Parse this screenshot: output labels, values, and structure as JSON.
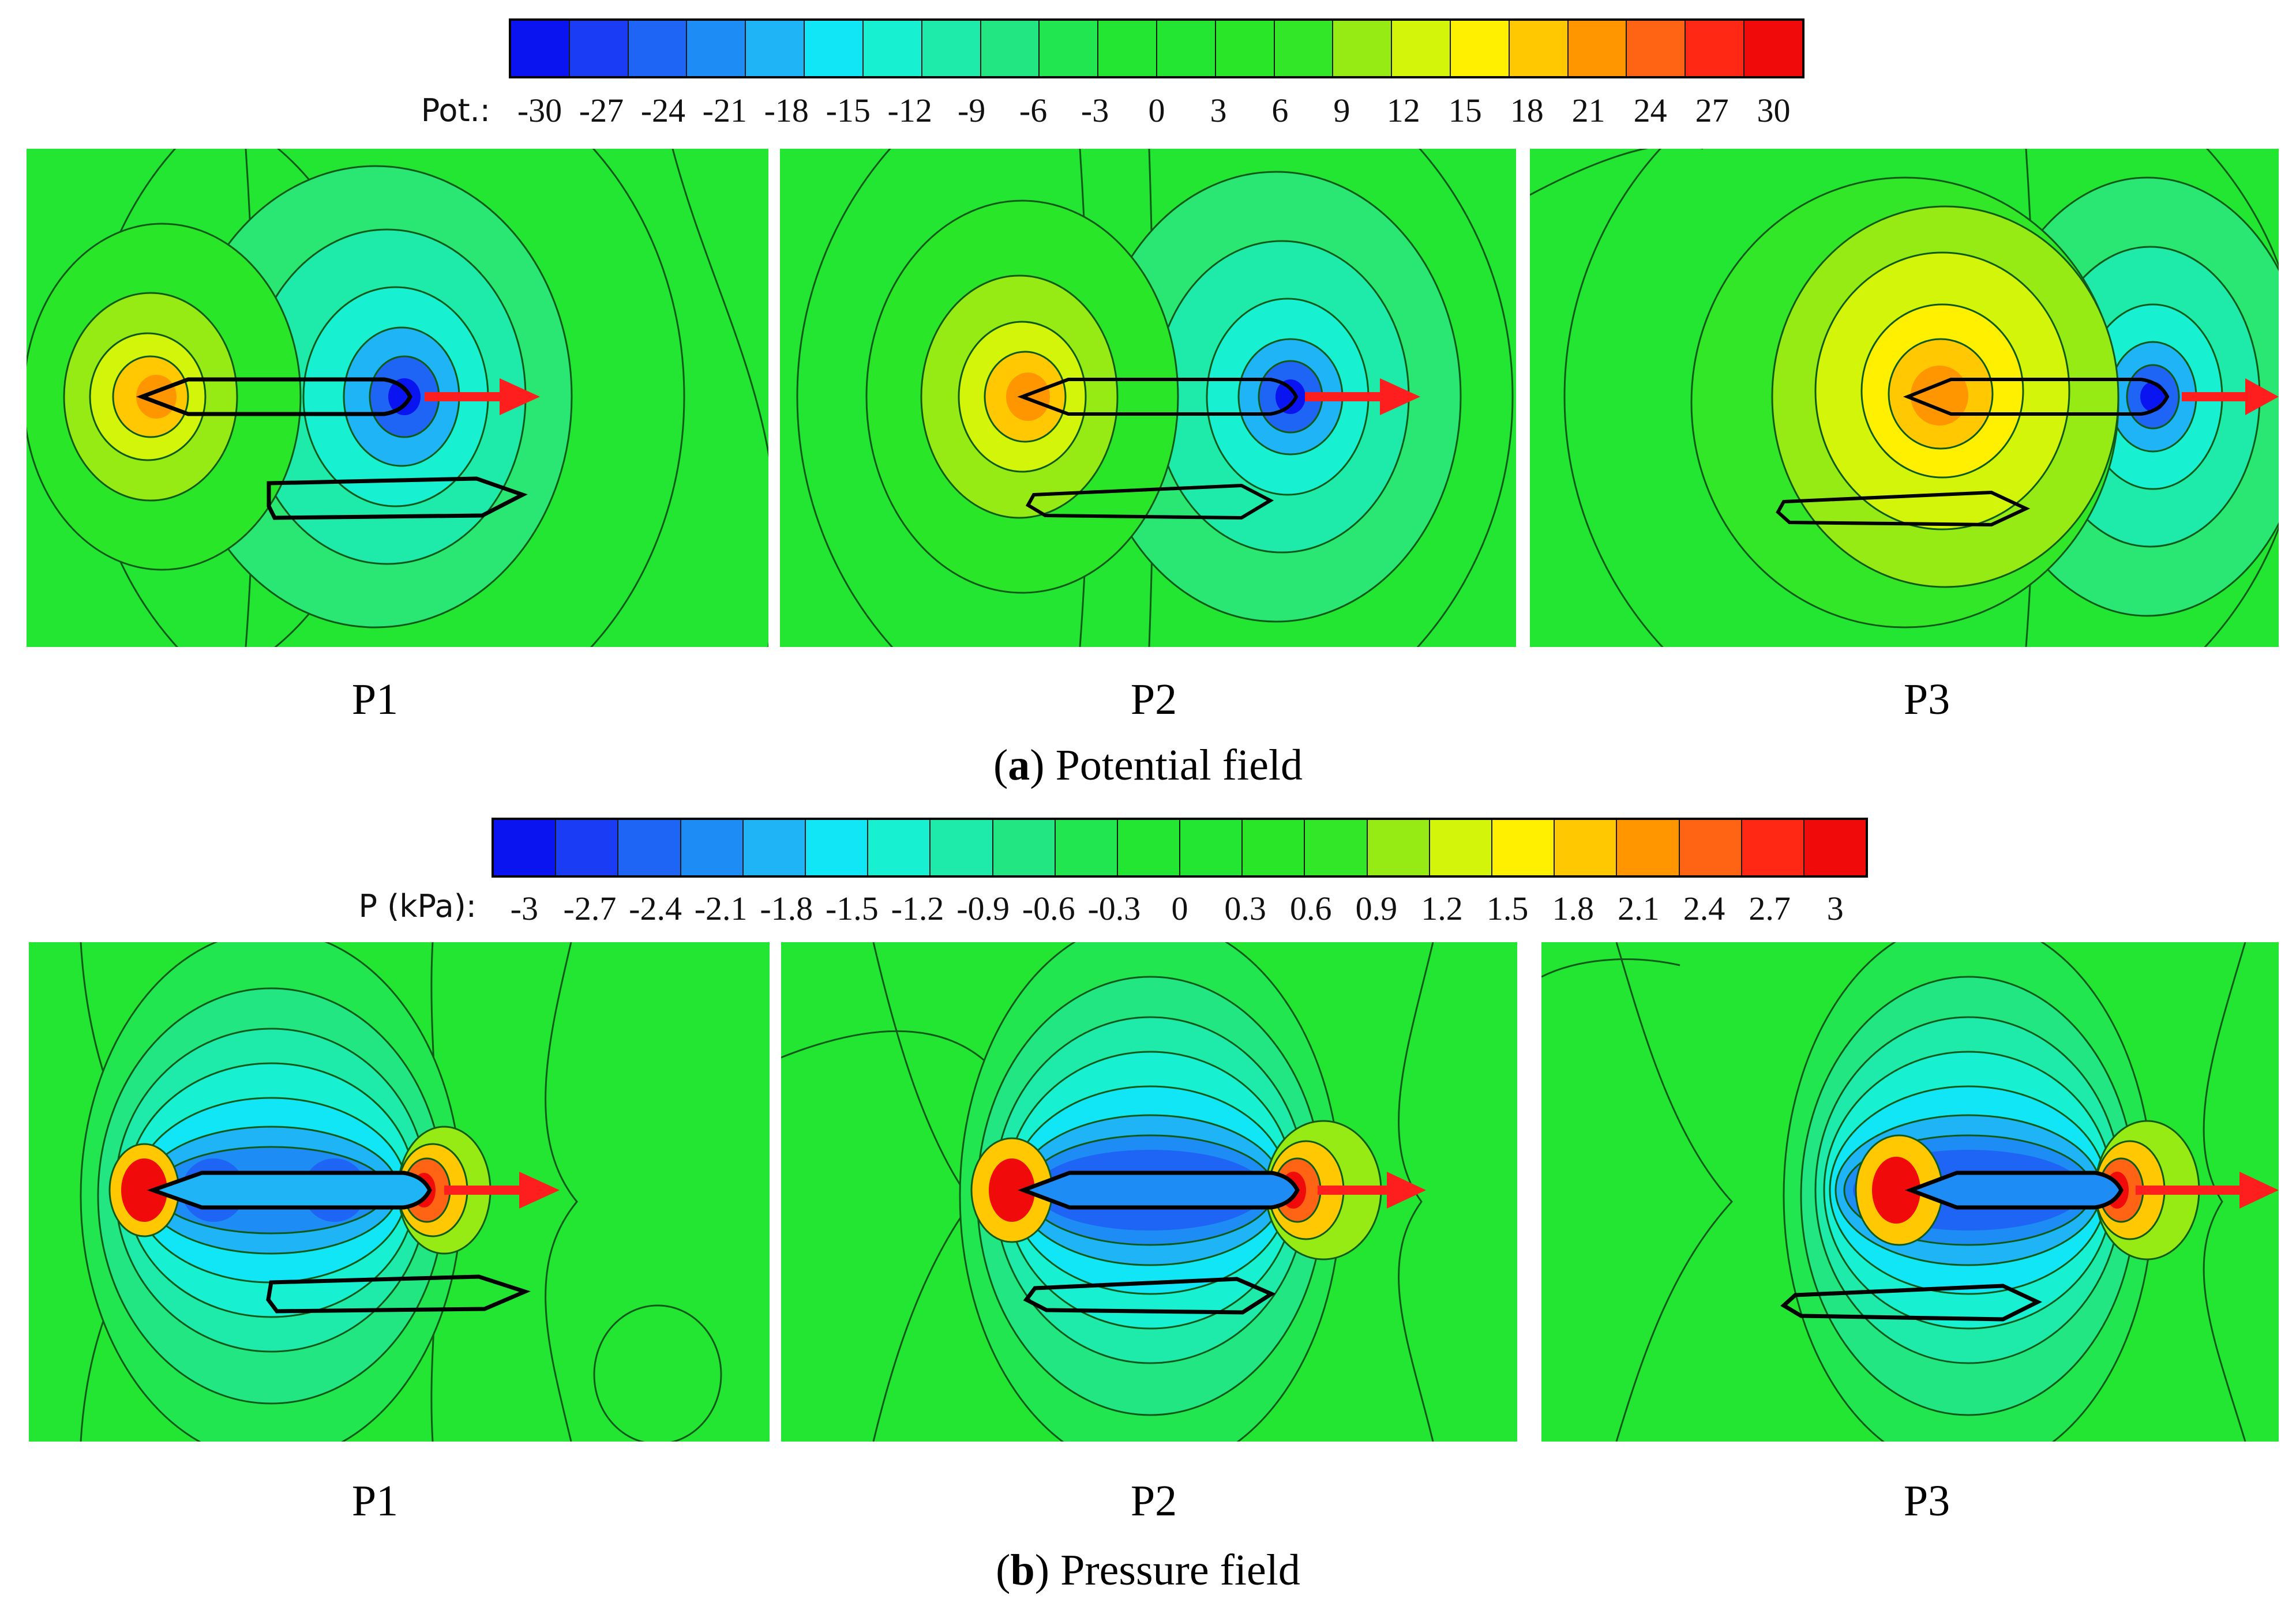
{
  "section_a": {
    "colorbar_label": "Pot.:",
    "ticks": [
      "-30",
      "-27",
      "-24",
      "-21",
      "-18",
      "-15",
      "-12",
      "-9",
      "-6",
      "-3",
      "0",
      "3",
      "6",
      "9",
      "12",
      "15",
      "18",
      "21",
      "24",
      "27",
      "30"
    ],
    "panel_labels": [
      "P1",
      "P2",
      "P3"
    ],
    "caption_letter": "a",
    "caption_text": " Potential field"
  },
  "section_b": {
    "colorbar_label": "P (kPa):",
    "ticks": [
      "-3",
      "-2.7",
      "-2.4",
      "-2.1",
      "-1.8",
      "-1.5",
      "-1.2",
      "-0.9",
      "-0.6",
      "-0.3",
      "0",
      "0.3",
      "0.6",
      "0.9",
      "1.2",
      "1.5",
      "1.8",
      "2.1",
      "2.4",
      "2.7",
      "3"
    ],
    "panel_labels": [
      "P1",
      "P2",
      "P3"
    ],
    "caption_letter": "b",
    "caption_text": " Pressure field"
  },
  "colors": {
    "scale": [
      "#0a14f0",
      "#1a3cf5",
      "#1e64f5",
      "#1e8cf5",
      "#1eb4f5",
      "#10e6f5",
      "#18f0d2",
      "#1eebaa",
      "#22e682",
      "#22e650",
      "#22e632",
      "#22e632",
      "#2ae628",
      "#32e628",
      "#96eb14",
      "#d2f50a",
      "#fff000",
      "#ffc800",
      "#ff9600",
      "#ff6414",
      "#ff2814",
      "#f00a0a"
    ],
    "field_green": "#22e632",
    "arrow": "#ff1e1e"
  }
}
